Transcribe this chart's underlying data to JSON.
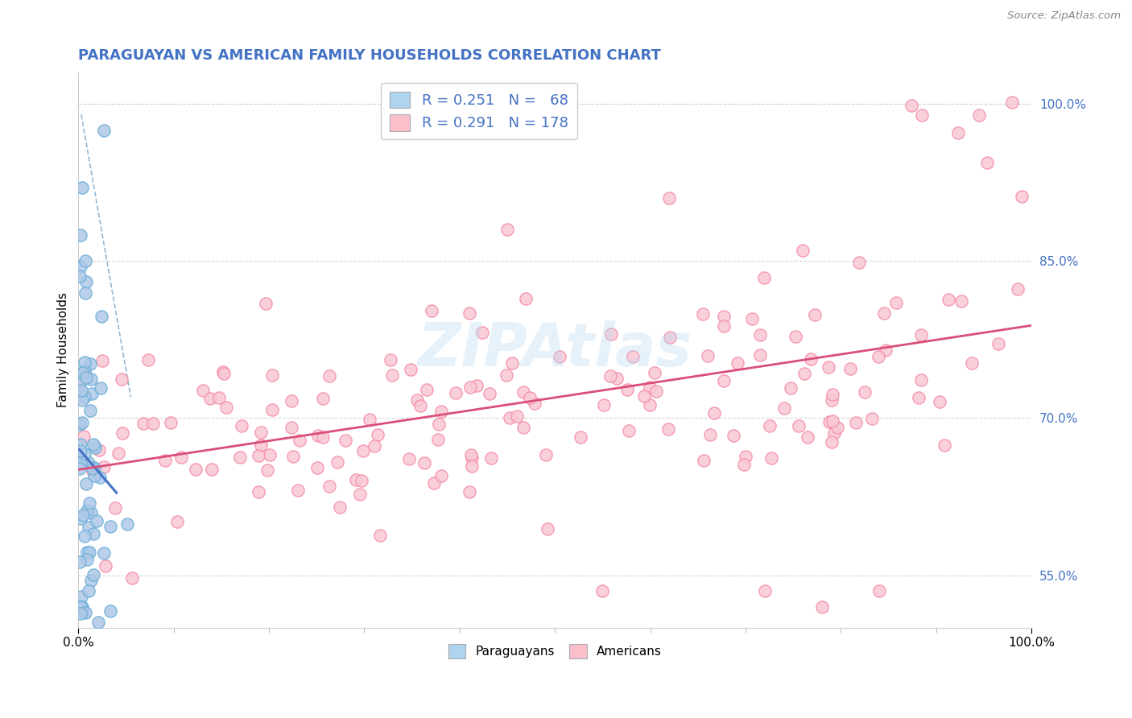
{
  "title": "PARAGUAYAN VS AMERICAN FAMILY HOUSEHOLDS CORRELATION CHART",
  "source": "Source: ZipAtlas.com",
  "ylabel": "Family Households",
  "legend_blue_label": "Paraguayans",
  "legend_pink_label": "Americans",
  "legend_r_blue": "R = 0.251",
  "legend_n_blue": "N =  68",
  "legend_r_pink": "R = 0.291",
  "legend_n_pink": "N = 178",
  "watermark": "ZIPAtlas",
  "blue_face_color": "#aec8e8",
  "blue_edge_color": "#6baed6",
  "pink_face_color": "#f9c8d4",
  "pink_edge_color": "#f48ca8",
  "blue_legend_color": "#aed4f0",
  "pink_legend_color": "#f9c0cc",
  "title_color": "#4472c4",
  "blue_line_color": "#4472c4",
  "pink_line_color": "#d94f7a",
  "dashed_line_color": "#8ab0d0",
  "background_color": "#ffffff",
  "grid_color": "#d8d8d8",
  "xlim": [
    0.0,
    1.0
  ],
  "ylim": [
    0.5,
    1.03
  ],
  "y_ticks": [
    0.55,
    0.7,
    0.85,
    1.0
  ],
  "y_tick_labels": [
    "55.0%",
    "70.0%",
    "85.0%",
    "100.0%"
  ],
  "watermark_text": "ZIPAtlas",
  "marker_size": 120,
  "marker_lw": 1.0
}
